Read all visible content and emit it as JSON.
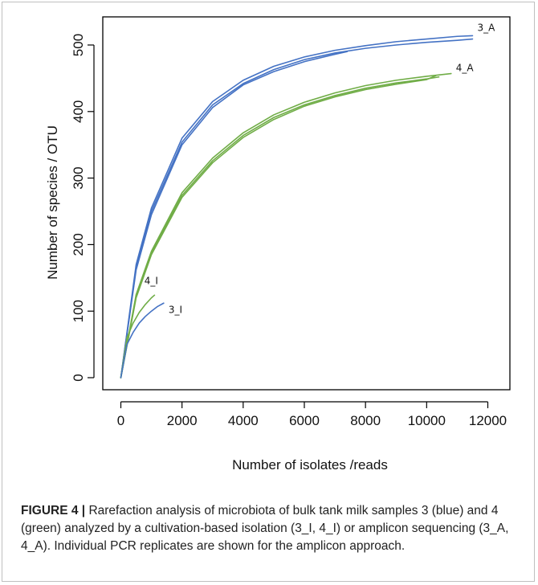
{
  "chart_data": {
    "type": "line",
    "title": "",
    "xlabel": "Number of isolates /reads",
    "ylabel": "Number of species / OTU",
    "xlim": [
      0,
      12000
    ],
    "ylim": [
      0,
      520
    ],
    "xticks": [
      0,
      2000,
      4000,
      6000,
      8000,
      10000,
      12000
    ],
    "yticks": [
      0,
      100,
      200,
      300,
      400,
      500
    ],
    "grid": false,
    "legend": "none",
    "colors": {
      "blue": "#4472c4",
      "green": "#70ad47"
    },
    "series": [
      {
        "name": "3_A",
        "color": "#4472c4",
        "x": [
          0,
          500,
          1000,
          2000,
          3000,
          4000,
          5000,
          6000,
          7000,
          8000,
          9000,
          10000,
          11000,
          11500
        ],
        "y": [
          0,
          170,
          255,
          360,
          415,
          447,
          468,
          482,
          492,
          499,
          505,
          509,
          513,
          514
        ]
      },
      {
        "name": "",
        "color": "#4472c4",
        "x": [
          0,
          500,
          1000,
          2000,
          3000,
          4000,
          5000,
          6000,
          7000,
          8000,
          9000,
          10000,
          11000,
          11500
        ],
        "y": [
          0,
          165,
          250,
          354,
          410,
          442,
          463,
          478,
          488,
          495,
          500,
          504,
          507,
          509
        ]
      },
      {
        "name": "",
        "color": "#4472c4",
        "x": [
          0,
          500,
          1000,
          2000,
          3000,
          4000,
          5000,
          6000,
          7000,
          7400
        ],
        "y": [
          0,
          162,
          245,
          350,
          406,
          440,
          460,
          475,
          486,
          490
        ]
      },
      {
        "name": "4_A",
        "color": "#70ad47",
        "x": [
          0,
          500,
          1000,
          2000,
          3000,
          4000,
          5000,
          6000,
          7000,
          8000,
          9000,
          10000,
          10800
        ],
        "y": [
          0,
          125,
          190,
          278,
          330,
          368,
          395,
          414,
          428,
          439,
          447,
          453,
          457
        ]
      },
      {
        "name": "",
        "color": "#70ad47",
        "x": [
          0,
          500,
          1000,
          2000,
          3000,
          4000,
          5000,
          6000,
          7000,
          8000,
          9000,
          10000,
          10400
        ],
        "y": [
          0,
          122,
          187,
          274,
          326,
          364,
          391,
          410,
          424,
          435,
          443,
          449,
          452
        ]
      },
      {
        "name": "",
        "color": "#70ad47",
        "x": [
          0,
          500,
          1000,
          2000,
          3000,
          4000,
          5000,
          6000,
          7000,
          8000,
          9000,
          10000,
          10300
        ],
        "y": [
          0,
          120,
          185,
          271,
          323,
          361,
          388,
          408,
          422,
          433,
          441,
          448,
          454
        ]
      },
      {
        "name": "4_I",
        "color": "#70ad47",
        "x": [
          0,
          200,
          400,
          600,
          800,
          1000,
          1100
        ],
        "y": [
          0,
          60,
          82,
          98,
          110,
          120,
          124
        ]
      },
      {
        "name": "3_I",
        "color": "#4472c4",
        "x": [
          0,
          200,
          400,
          600,
          800,
          1000,
          1200,
          1400
        ],
        "y": [
          0,
          50,
          68,
          82,
          92,
          100,
          107,
          112
        ]
      }
    ]
  },
  "caption": {
    "label": "FIGURE 4 |",
    "text": " Rarefaction analysis of microbiota of bulk tank milk samples 3 (blue) and 4 (green) analyzed by a cultivation-based isolation (3_I, 4_I) or amplicon sequencing (3_A, 4_A). Individual PCR replicates are shown for the amplicon approach."
  }
}
